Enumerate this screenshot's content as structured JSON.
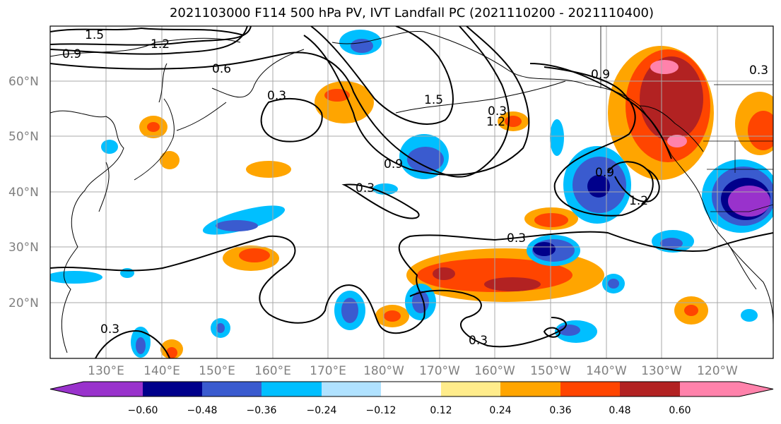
{
  "title": "2021103000 F114 500 hPa PV, IVT Landfall PC (2021110200 - 2021110400)",
  "lat_labels": [
    "60°N",
    "50°N",
    "40°N",
    "30°N",
    "20°N"
  ],
  "lon_labels": [
    "130°E",
    "140°E",
    "150°E",
    "160°E",
    "170°E",
    "180°W",
    "170°W",
    "160°W",
    "150°W",
    "140°W",
    "130°W",
    "120°W"
  ],
  "contour_labels": [
    "1.5",
    "1.2",
    "0.9",
    "0.6",
    "0.3",
    "0.9",
    "0.3",
    "1.5",
    "1.2",
    "0.9",
    "0.9",
    "1.2",
    "0.3",
    "0.3",
    "0.3",
    "0.3",
    "0.3"
  ],
  "colorbar": {
    "tick_labels": [
      "−0.60",
      "−0.48",
      "−0.36",
      "−0.24",
      "−0.12",
      "0.12",
      "0.24",
      "0.36",
      "0.48",
      "0.60"
    ],
    "colors": [
      "#9932cc",
      "#00008b",
      "#3a5bcf",
      "#00bfff",
      "#b0e2ff",
      "#ffffff",
      "#ffec8b",
      "#ffa500",
      "#ff4500",
      "#b22222",
      "#ff82ab"
    ]
  }
}
